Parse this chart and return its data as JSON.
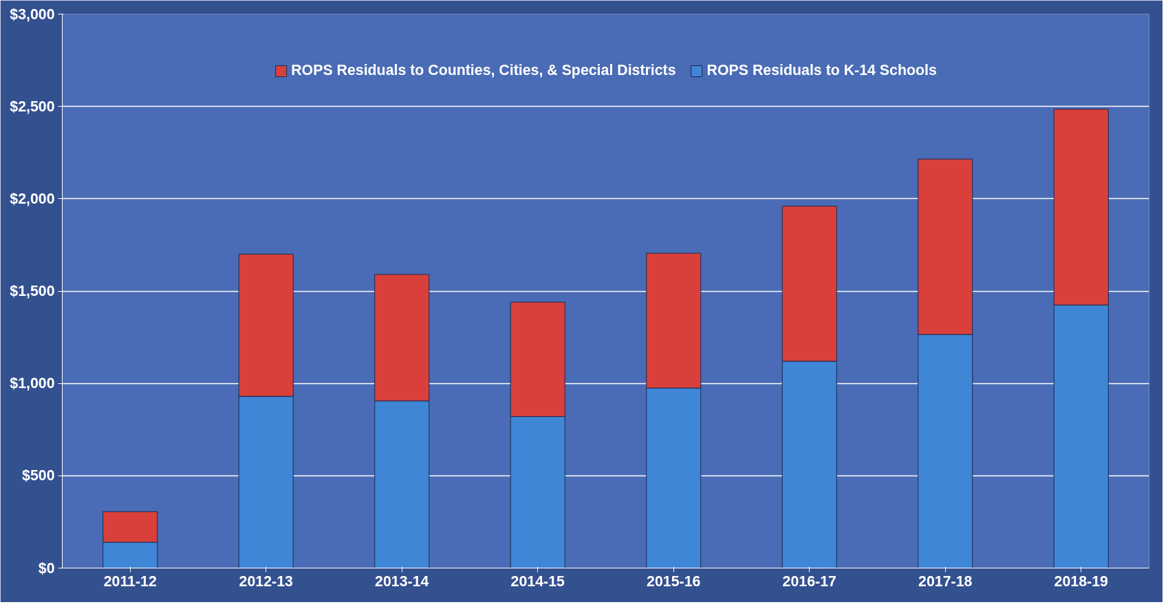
{
  "chart_data": {
    "type": "bar",
    "stacked": true,
    "categories": [
      "2011-12",
      "2012-13",
      "2013-14",
      "2014-15",
      "2015-16",
      "2016-17",
      "2017-18",
      "2018-19"
    ],
    "series": [
      {
        "name": "ROPS Residuals to K-14 Schools",
        "color": "#3f86d6",
        "values": [
          140,
          930,
          905,
          820,
          975,
          1120,
          1265,
          1425
        ]
      },
      {
        "name": "ROPS Residuals to Counties, Cities, & Special Districts",
        "color": "#d9403b",
        "values": [
          165,
          770,
          685,
          620,
          730,
          840,
          950,
          1060
        ]
      }
    ],
    "ylim": [
      0,
      3000
    ],
    "yticks": [
      {
        "value": 0,
        "label": "$0"
      },
      {
        "value": 500,
        "label": "$500"
      },
      {
        "value": 1000,
        "label": "$1,000"
      },
      {
        "value": 1500,
        "label": "$1,500"
      },
      {
        "value": 2000,
        "label": "$2,000"
      },
      {
        "value": 2500,
        "label": "$2,500"
      },
      {
        "value": 3000,
        "label": "$3,000"
      }
    ],
    "grid": "y",
    "legend": "top"
  }
}
